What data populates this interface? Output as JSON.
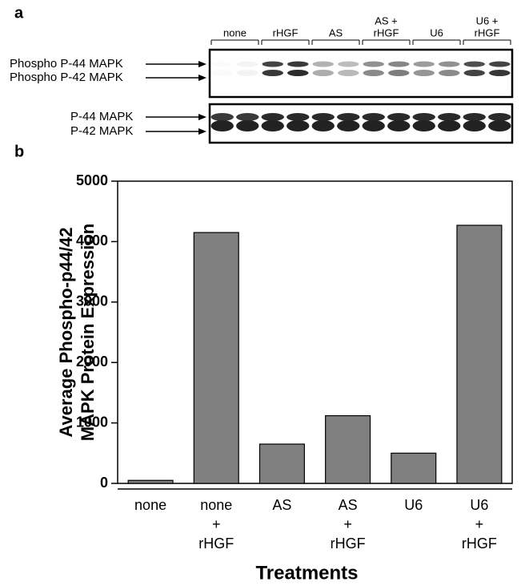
{
  "figure": {
    "panel_a": "a",
    "panel_b": "b"
  },
  "blot": {
    "lanes": [
      [
        "none"
      ],
      [
        "rHGF"
      ],
      [
        "AS"
      ],
      [
        "AS +",
        "rHGF"
      ],
      [
        "U6"
      ],
      [
        "U6 +",
        "rHGF"
      ]
    ],
    "phospho_labels": [
      "Phospho P-44 MAPK",
      "Phospho P-42 MAPK"
    ],
    "total_labels": [
      "P-44 MAPK",
      "P-42 MAPK"
    ]
  },
  "chart_data": {
    "type": "bar",
    "categories": [
      [
        "none"
      ],
      [
        "none",
        "+",
        "rHGF"
      ],
      [
        "AS"
      ],
      [
        "AS",
        "+",
        "rHGF"
      ],
      [
        "U6"
      ],
      [
        "U6",
        "+",
        "rHGF"
      ]
    ],
    "values": [
      50,
      4150,
      650,
      1120,
      500,
      4270
    ],
    "color": "#808080",
    "ylabel": [
      "Average Phospho-p44/42",
      "MAPK Protein Expression"
    ],
    "xlabel": "Treatments",
    "ylim": [
      0,
      5000
    ],
    "yticks": [
      0,
      1000,
      2000,
      3000,
      4000,
      5000
    ]
  }
}
